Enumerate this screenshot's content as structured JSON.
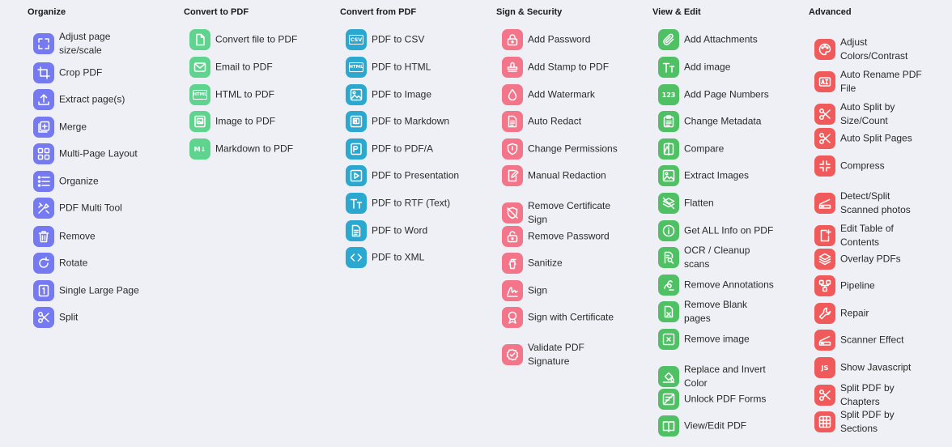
{
  "columns": [
    {
      "title": "Organize",
      "color": "#7579f2",
      "tools": [
        {
          "label": "Adjust page size/scale",
          "icon": "resize-icon"
        },
        {
          "label": "Crop PDF",
          "icon": "crop-icon"
        },
        {
          "label": "Extract page(s)",
          "icon": "upload-icon"
        },
        {
          "label": "Merge",
          "icon": "merge-icon"
        },
        {
          "label": "Multi-Page Layout",
          "icon": "grid-icon"
        },
        {
          "label": "Organize",
          "icon": "list-icon"
        },
        {
          "label": "PDF Multi Tool",
          "icon": "tools-icon"
        },
        {
          "label": "Remove",
          "icon": "trash-icon"
        },
        {
          "label": "Rotate",
          "icon": "rotate-icon"
        },
        {
          "label": "Single Large Page",
          "icon": "single-page-icon"
        },
        {
          "label": "Split",
          "icon": "scissors-icon"
        }
      ]
    },
    {
      "title": "Convert to PDF",
      "color": "#5fd48e",
      "tools": [
        {
          "label": "Convert file to PDF",
          "icon": "file-icon"
        },
        {
          "label": "Email to PDF",
          "icon": "mail-icon"
        },
        {
          "label": "HTML to PDF",
          "icon": "html-icon",
          "text": "HTML"
        },
        {
          "label": "Image to PDF",
          "icon": "image-file-icon"
        },
        {
          "label": "Markdown to PDF",
          "icon": "markdown-icon",
          "text": "M↓"
        }
      ]
    },
    {
      "title": "Convert from PDF",
      "color": "#2aa8d0",
      "tools": [
        {
          "label": "PDF to CSV",
          "icon": "csv-icon",
          "text": "CSV"
        },
        {
          "label": "PDF to HTML",
          "icon": "html-icon",
          "text": "HTML"
        },
        {
          "label": "PDF to Image",
          "icon": "image-icon"
        },
        {
          "label": "PDF to Markdown",
          "icon": "markdown-icon"
        },
        {
          "label": "PDF to PDF/A",
          "icon": "pdfa-icon"
        },
        {
          "label": "PDF to Presentation",
          "icon": "presentation-icon"
        },
        {
          "label": "PDF to RTF (Text)",
          "icon": "text-icon"
        },
        {
          "label": "PDF to Word",
          "icon": "document-icon"
        },
        {
          "label": "PDF to XML",
          "icon": "code-icon"
        }
      ]
    },
    {
      "title": "Sign & Security",
      "color": "#f4748a",
      "tools": [
        {
          "label": "Add Password",
          "icon": "lock-icon"
        },
        {
          "label": "Add Stamp to PDF",
          "icon": "stamp-icon"
        },
        {
          "label": "Add Watermark",
          "icon": "droplet-icon"
        },
        {
          "label": "Auto Redact",
          "icon": "redact-icon"
        },
        {
          "label": "Change Permissions",
          "icon": "shield-icon"
        },
        {
          "label": "Manual Redaction",
          "icon": "edit-doc-icon"
        },
        {
          "label": "Remove Certificate Sign",
          "icon": "remove-cert-icon"
        },
        {
          "label": "Remove Password",
          "icon": "unlock-icon"
        },
        {
          "label": "Sanitize",
          "icon": "sanitize-icon"
        },
        {
          "label": "Sign",
          "icon": "signature-icon"
        },
        {
          "label": "Sign with Certificate",
          "icon": "certificate-icon"
        },
        {
          "label": "Validate PDF Signature",
          "icon": "verified-icon"
        }
      ]
    },
    {
      "title": "View & Edit",
      "color": "#4fc164",
      "tools": [
        {
          "label": "Add Attachments",
          "icon": "paperclip-icon"
        },
        {
          "label": "Add image",
          "icon": "text-icon"
        },
        {
          "label": "Add Page Numbers",
          "icon": "numbers-icon",
          "text": "123"
        },
        {
          "label": "Change Metadata",
          "icon": "clipboard-icon"
        },
        {
          "label": "Compare",
          "icon": "compare-icon"
        },
        {
          "label": "Extract Images",
          "icon": "image-icon"
        },
        {
          "label": "Flatten",
          "icon": "layers-off-icon"
        },
        {
          "label": "Get ALL Info on PDF",
          "icon": "info-icon"
        },
        {
          "label": "OCR / Cleanup scans",
          "icon": "ocr-icon"
        },
        {
          "label": "Remove Annotations",
          "icon": "ink-eraser-icon"
        },
        {
          "label": "Remove Blank pages",
          "icon": "blank-page-icon"
        },
        {
          "label": "Remove image",
          "icon": "remove-image-icon"
        },
        {
          "label": "Replace and Invert Color",
          "icon": "paint-bucket-icon"
        },
        {
          "label": "Unlock PDF Forms",
          "icon": "form-icon"
        },
        {
          "label": "View/Edit PDF",
          "icon": "book-icon"
        }
      ]
    },
    {
      "title": "Advanced",
      "color": "#f05a5a",
      "tools": [
        {
          "label": "Adjust Colors/Contrast",
          "icon": "palette-icon"
        },
        {
          "label": "Auto Rename PDF File",
          "icon": "rename-icon"
        },
        {
          "label": "Auto Split by Size/Count",
          "icon": "scissors-icon"
        },
        {
          "label": "Auto Split Pages",
          "icon": "scissors-icon"
        },
        {
          "label": "Compress",
          "icon": "compress-icon"
        },
        {
          "label": "Detect/Split Scanned photos",
          "icon": "scanner-icon"
        },
        {
          "label": "Edit Table of Contents",
          "icon": "toc-icon"
        },
        {
          "label": "Overlay PDFs",
          "icon": "layers-icon"
        },
        {
          "label": "Pipeline",
          "icon": "pipeline-icon"
        },
        {
          "label": "Repair",
          "icon": "wrench-icon"
        },
        {
          "label": "Scanner Effect",
          "icon": "scanner-icon"
        },
        {
          "label": "Show Javascript",
          "icon": "js-icon",
          "text": "JS"
        },
        {
          "label": "Split PDF by Chapters",
          "icon": "scissors-icon"
        },
        {
          "label": "Split PDF by Sections",
          "icon": "grid-sections-icon"
        }
      ]
    }
  ]
}
